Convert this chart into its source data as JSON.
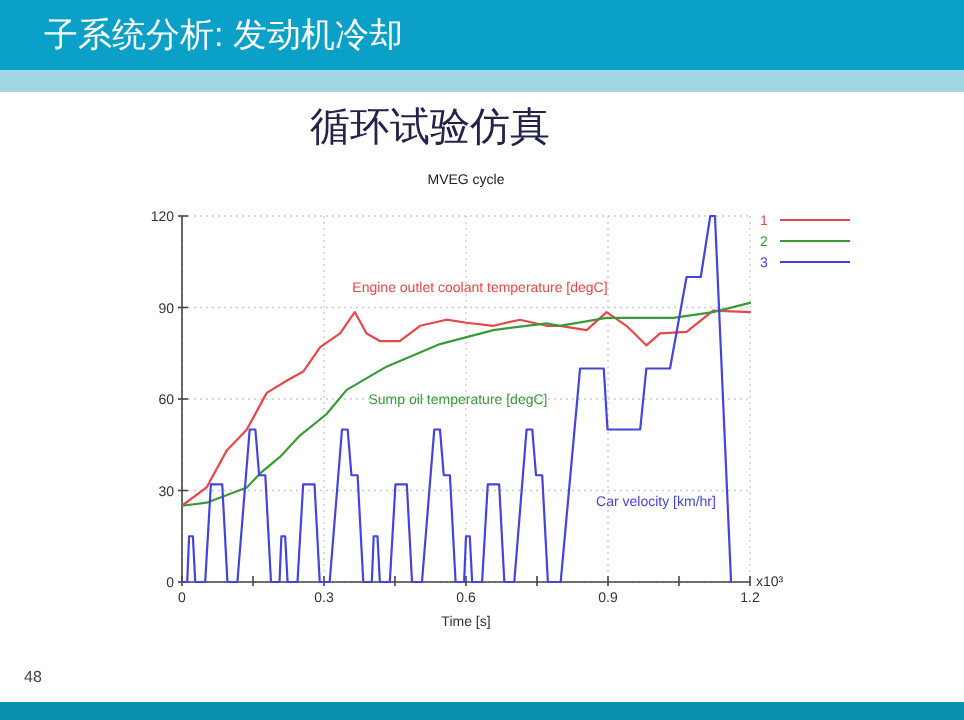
{
  "chart_data": {
    "type": "line",
    "title": "MVEG cycle",
    "xlabel": "Time [s]",
    "xlim": [
      0,
      1.2
    ],
    "ylim": [
      0,
      120
    ],
    "xticks": [
      0,
      {
        "value": 0.15,
        "label": null
      },
      0.3,
      {
        "value": 0.45,
        "label": null
      },
      0.6,
      {
        "value": 0.75,
        "label": null
      },
      0.9,
      {
        "value": 1.05,
        "label": null
      },
      1.2
    ],
    "yticks": [
      0,
      30,
      60,
      90,
      120
    ],
    "grid": true,
    "legend": "top right",
    "series": [
      {
        "name": "1",
        "color": "#e8474a",
        "x": [
          0,
          0.052,
          0.094,
          0.137,
          0.179,
          0.221,
          0.256,
          0.292,
          0.334,
          0.365,
          0.39,
          0.418,
          0.46,
          0.503,
          0.559,
          0.601,
          0.658,
          0.714,
          0.77,
          0.798,
          0.855,
          0.897,
          0.939,
          0.981,
          1.01,
          1.066,
          1.122,
          1.2
        ],
        "values": [
          25,
          31,
          43,
          50,
          62,
          66,
          69,
          77,
          81.5,
          88.5,
          81.5,
          79,
          79,
          84,
          86,
          85,
          84,
          86,
          84,
          84,
          82.6,
          88.5,
          84,
          77.6,
          81.5,
          82,
          89,
          88.5
        ]
      },
      {
        "name": "2",
        "color": "#3a9a3a",
        "x": [
          0,
          0.052,
          0.137,
          0.165,
          0.207,
          0.249,
          0.305,
          0.348,
          0.432,
          0.545,
          0.658,
          0.77,
          0.798,
          0.897,
          1.038,
          1.122,
          1.2
        ],
        "values": [
          25,
          26,
          31,
          35.6,
          41,
          48,
          55,
          63,
          70.6,
          78,
          82.6,
          84.8,
          84,
          86.6,
          86.6,
          88.5,
          91.5
        ]
      },
      {
        "name": "3",
        "color": "#4444dd",
        "x": [
          0,
          0.011,
          0.015,
          0.023,
          0.028,
          0.049,
          0.061,
          0.085,
          0.096,
          0.117,
          0.143,
          0.155,
          0.163,
          0.176,
          0.188,
          0.206,
          0.21,
          0.218,
          0.223,
          0.244,
          0.256,
          0.28,
          0.291,
          0.312,
          0.338,
          0.35,
          0.358,
          0.371,
          0.383,
          0.401,
          0.405,
          0.413,
          0.418,
          0.439,
          0.451,
          0.475,
          0.486,
          0.507,
          0.533,
          0.545,
          0.553,
          0.566,
          0.578,
          0.596,
          0.6,
          0.608,
          0.613,
          0.634,
          0.646,
          0.67,
          0.681,
          0.702,
          0.728,
          0.74,
          0.748,
          0.761,
          0.773,
          0.8,
          0.841,
          0.891,
          0.899,
          0.968,
          0.981,
          1.031,
          1.066,
          1.096,
          1.116,
          1.126,
          1.16
        ],
        "values": [
          0,
          0,
          15,
          15,
          0,
          0,
          32,
          32,
          0,
          0,
          50,
          50,
          35,
          35,
          0,
          0,
          15,
          15,
          0,
          0,
          32,
          32,
          0,
          0,
          50,
          50,
          35,
          35,
          0,
          0,
          15,
          15,
          0,
          0,
          32,
          32,
          0,
          0,
          50,
          50,
          35,
          35,
          0,
          0,
          15,
          15,
          0,
          0,
          32,
          32,
          0,
          0,
          50,
          50,
          35,
          35,
          0,
          0,
          70,
          70,
          50,
          50,
          70,
          70,
          100,
          100,
          120,
          120,
          0
        ]
      }
    ],
    "annotations": [
      "子系统分析: 发动机冷却",
      "循环试验仿真",
      "x10³",
      "48",
      "Engine outlet coolant temperature [degC]",
      "Sump oil temperature [degC]",
      "Car velocity [km/hr]"
    ]
  }
}
